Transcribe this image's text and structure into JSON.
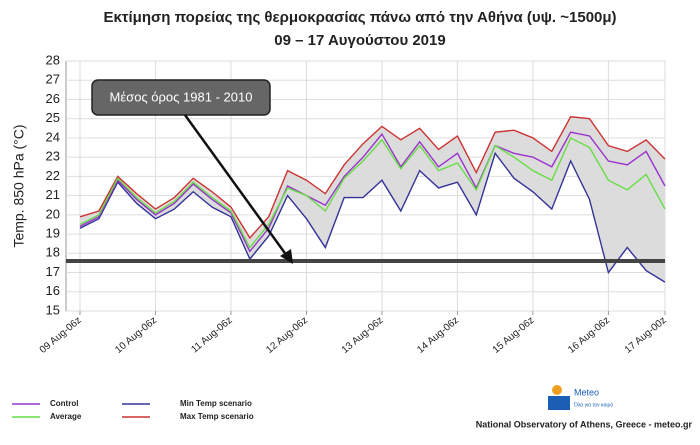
{
  "chart_data": {
    "type": "line",
    "title": "Εκτίμηση πορείας της θερμοκρασίας πάνω από την Αθήνα (υψ. ~1500μ)",
    "subtitle": "09 – 17 Αυγούστου 2019",
    "y_label": "Temp. 850 hPa (°C)",
    "categories": [
      "09 Aug-06z",
      null,
      null,
      null,
      "10 Aug-06z",
      null,
      null,
      null,
      "11 Aug-06z",
      null,
      null,
      null,
      "12 Aug-06z",
      null,
      null,
      null,
      "13 Aug-06z",
      null,
      null,
      null,
      "14 Aug-06z",
      null,
      null,
      null,
      "15 Aug-06z",
      null,
      null,
      null,
      "16 Aug-06z",
      null,
      null,
      "17 Aug-00z"
    ],
    "series": [
      {
        "name": "Control",
        "color": "#9933cc",
        "values": [
          19.4,
          19.9,
          21.8,
          20.8,
          20.0,
          20.6,
          21.6,
          20.8,
          20.1,
          18.1,
          19.3,
          21.5,
          21.0,
          20.5,
          22.0,
          23.0,
          24.2,
          22.5,
          23.8,
          22.5,
          23.2,
          21.4,
          23.6,
          23.2,
          23.0,
          22.5,
          24.3,
          24.1,
          22.8,
          22.6,
          23.3,
          21.5
        ]
      },
      {
        "name": "Average",
        "color": "#66dd44",
        "values": [
          19.5,
          20.0,
          21.9,
          20.9,
          20.1,
          20.7,
          21.7,
          20.9,
          20.2,
          18.3,
          19.5,
          21.4,
          21.0,
          20.2,
          21.9,
          22.8,
          23.9,
          22.4,
          23.6,
          22.3,
          22.7,
          21.3,
          23.6,
          23.0,
          22.3,
          21.8,
          24.0,
          23.5,
          21.8,
          21.3,
          22.1,
          20.3
        ]
      },
      {
        "name": "Min Temp scenario",
        "color": "#333399",
        "values": [
          19.3,
          19.8,
          21.7,
          20.6,
          19.8,
          20.3,
          21.2,
          20.4,
          19.9,
          17.7,
          18.9,
          21.0,
          19.8,
          18.3,
          20.9,
          20.9,
          21.8,
          20.2,
          22.3,
          21.4,
          21.7,
          20.0,
          23.2,
          21.9,
          21.2,
          20.3,
          22.8,
          20.8,
          17.0,
          18.3,
          17.1,
          16.5
        ]
      },
      {
        "name": "Max Temp scenario",
        "color": "#cc3333",
        "values": [
          19.9,
          20.2,
          22.0,
          21.1,
          20.3,
          20.9,
          21.9,
          21.2,
          20.4,
          18.8,
          19.9,
          22.3,
          21.8,
          21.1,
          22.6,
          23.7,
          24.6,
          23.9,
          24.5,
          23.4,
          24.1,
          22.2,
          24.3,
          24.4,
          24.0,
          23.3,
          25.1,
          25.0,
          23.6,
          23.3,
          23.9,
          22.9
        ]
      }
    ],
    "spread_color": "#dcdcdc",
    "reference_line": {
      "value": 17.6,
      "label": "Μέσος όρος 1981 - 2010",
      "color": "#444444"
    },
    "ylim": [
      15,
      28
    ],
    "yticks": [
      15,
      16,
      17,
      18,
      19,
      20,
      21,
      22,
      23,
      24,
      25,
      26,
      27,
      28
    ],
    "grid": true,
    "source": "National Observatory of Athens, Greece - meteo.gr",
    "logo": {
      "name": "Meteo",
      "tagline": "Όλα για τον καιρό"
    }
  }
}
